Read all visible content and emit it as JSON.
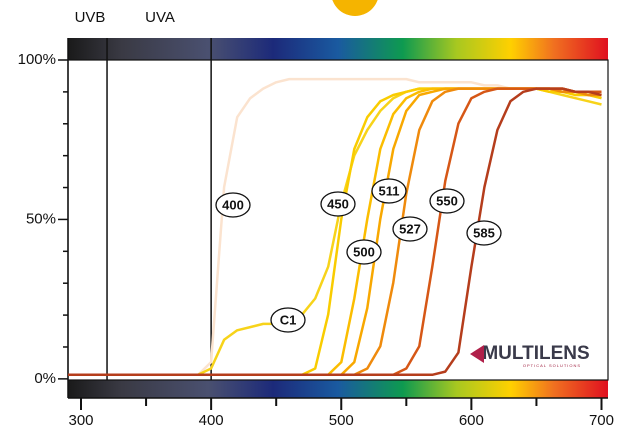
{
  "chart_data": {
    "type": "line",
    "annotations": [
      "UVB",
      "UVA"
    ],
    "uv_boundaries": [
      320,
      400
    ],
    "x": [
      290,
      300,
      310,
      320,
      330,
      340,
      350,
      360,
      370,
      380,
      390,
      400,
      410,
      420,
      430,
      440,
      450,
      460,
      470,
      480,
      490,
      500,
      510,
      520,
      530,
      540,
      550,
      560,
      570,
      580,
      590,
      600,
      610,
      620,
      630,
      640,
      650,
      660,
      670,
      680,
      690,
      700
    ],
    "series": [
      {
        "name": "400",
        "color": "#fbe3cf",
        "values": [
          1,
          1,
          1,
          1,
          1,
          1,
          1,
          1,
          1,
          1,
          1,
          5,
          60,
          82,
          88,
          91,
          93,
          94,
          94,
          94,
          94,
          94,
          94,
          94,
          94,
          94,
          94,
          93,
          93,
          93,
          93,
          93,
          92,
          92,
          91,
          91,
          91,
          90,
          90,
          89,
          89,
          88
        ]
      },
      {
        "name": "C1",
        "color": "#f7d31a",
        "values": [
          1,
          1,
          1,
          1,
          1,
          1,
          1,
          1,
          1,
          1,
          1,
          3,
          12,
          15,
          16,
          17,
          17,
          18,
          20,
          25,
          35,
          55,
          70,
          78,
          84,
          88,
          90,
          91,
          91,
          91,
          91,
          91,
          91,
          91,
          91,
          91,
          91,
          90,
          89,
          88,
          87,
          86
        ]
      },
      {
        "name": "450",
        "color": "#f9cc00",
        "values": [
          1,
          1,
          1,
          1,
          1,
          1,
          1,
          1,
          1,
          1,
          1,
          1,
          1,
          1,
          1,
          1,
          1,
          1,
          1,
          3,
          20,
          50,
          72,
          82,
          87,
          89,
          90,
          91,
          91,
          91,
          91,
          91,
          91,
          91,
          91,
          91,
          91,
          90,
          90,
          89,
          89,
          88
        ]
      },
      {
        "name": "500",
        "color": "#fbbd00",
        "values": [
          1,
          1,
          1,
          1,
          1,
          1,
          1,
          1,
          1,
          1,
          1,
          1,
          1,
          1,
          1,
          1,
          1,
          1,
          1,
          1,
          1,
          5,
          25,
          50,
          72,
          83,
          88,
          90,
          91,
          91,
          91,
          91,
          91,
          91,
          91,
          91,
          91,
          91,
          90,
          90,
          89,
          89
        ]
      },
      {
        "name": "511",
        "color": "#f8a800",
        "values": [
          1,
          1,
          1,
          1,
          1,
          1,
          1,
          1,
          1,
          1,
          1,
          1,
          1,
          1,
          1,
          1,
          1,
          1,
          1,
          1,
          1,
          1,
          5,
          22,
          50,
          72,
          84,
          89,
          90,
          91,
          91,
          91,
          91,
          91,
          91,
          91,
          91,
          91,
          91,
          90,
          90,
          89
        ]
      },
      {
        "name": "527",
        "color": "#ef8a0c",
        "values": [
          1,
          1,
          1,
          1,
          1,
          1,
          1,
          1,
          1,
          1,
          1,
          1,
          1,
          1,
          1,
          1,
          1,
          1,
          1,
          1,
          1,
          1,
          1,
          3,
          10,
          30,
          58,
          78,
          87,
          90,
          91,
          91,
          91,
          91,
          91,
          91,
          91,
          91,
          90,
          90,
          89,
          89
        ]
      },
      {
        "name": "550",
        "color": "#d65716",
        "values": [
          1,
          1,
          1,
          1,
          1,
          1,
          1,
          1,
          1,
          1,
          1,
          1,
          1,
          1,
          1,
          1,
          1,
          1,
          1,
          1,
          1,
          1,
          1,
          1,
          1,
          1,
          3,
          10,
          35,
          62,
          80,
          88,
          90,
          91,
          91,
          91,
          91,
          91,
          91,
          90,
          90,
          90
        ]
      },
      {
        "name": "585",
        "color": "#b53d1c",
        "values": [
          1,
          1,
          1,
          1,
          1,
          1,
          1,
          1,
          1,
          1,
          1,
          1,
          1,
          1,
          1,
          1,
          1,
          1,
          1,
          1,
          1,
          1,
          1,
          1,
          1,
          1,
          1,
          1,
          1,
          2,
          8,
          35,
          60,
          78,
          87,
          90,
          91,
          91,
          91,
          90,
          90,
          89
        ]
      }
    ],
    "xlim": [
      290,
      705
    ],
    "xticks": [
      300,
      400,
      500,
      600,
      700
    ],
    "xminorticks": [
      350,
      450,
      550,
      650
    ],
    "ylim": [
      -6,
      100
    ],
    "yticks": [
      {
        "value": 0,
        "label": "0%"
      },
      {
        "value": 50,
        "label": "50%"
      },
      {
        "value": 100,
        "label": "100%"
      }
    ],
    "yminorticks": [
      10,
      20,
      30,
      40,
      60,
      70,
      80,
      90
    ],
    "logo": {
      "name": "MULTILENS",
      "tagline": "OPTICAL SOLUTIONS"
    }
  }
}
